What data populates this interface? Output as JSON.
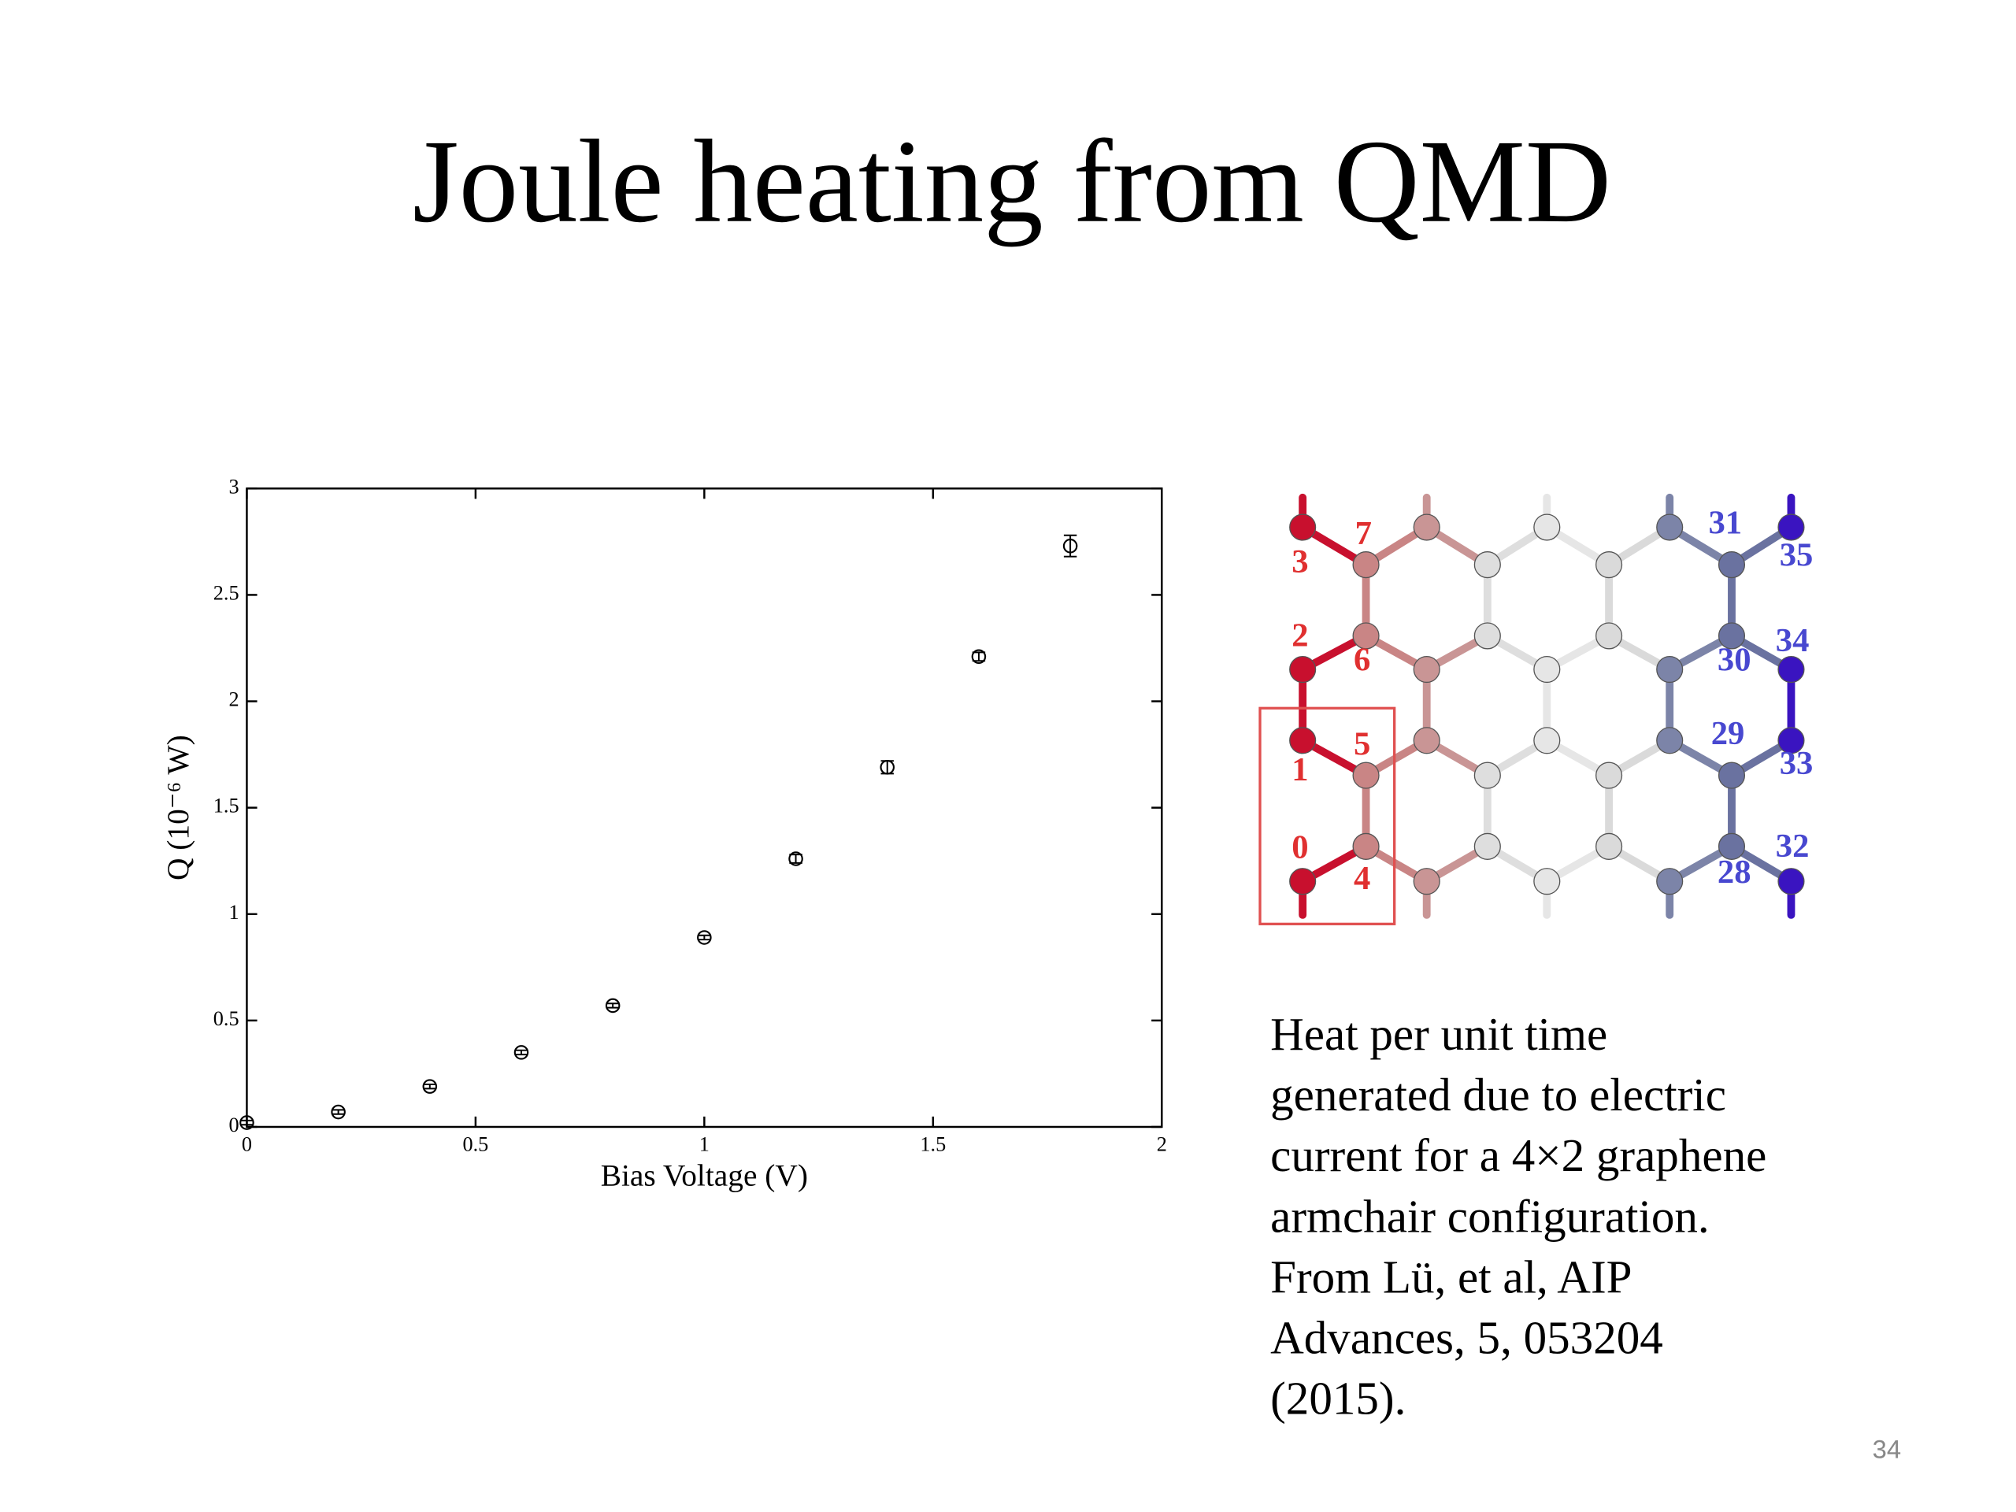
{
  "slide": {
    "title": "Joule heating from QMD",
    "caption": [
      "Heat per unit time",
      "generated due to electric",
      "current for a 4×2 graphene",
      "armchair configuration.",
      "From Lü, et al, AIP",
      "Advances, 5, 053204",
      "(2015)."
    ],
    "page_number": "34"
  },
  "lattice": {
    "labels": [
      "7",
      "3",
      "2",
      "6",
      "5",
      "1",
      "0",
      "4",
      "31",
      "35",
      "34",
      "30",
      "29",
      "33",
      "32",
      "28"
    ]
  },
  "chart_data": {
    "type": "scatter",
    "x": [
      0,
      0.2,
      0.4,
      0.6,
      0.8,
      1.0,
      1.2,
      1.4,
      1.6,
      1.8
    ],
    "values": [
      0.02,
      0.07,
      0.19,
      0.35,
      0.57,
      0.89,
      1.26,
      1.69,
      2.21,
      2.73
    ],
    "errors": [
      0.01,
      0.01,
      0.01,
      0.01,
      0.01,
      0.01,
      0.02,
      0.03,
      0.02,
      0.05
    ],
    "color": "#000000",
    "xlabel": "Bias Voltage (V)",
    "ylabel": "Q (10⁻⁶ W)",
    "xlim": [
      0,
      2
    ],
    "ylim": [
      0,
      3
    ],
    "xticks": [
      0,
      0.5,
      1,
      1.5,
      2
    ],
    "yticks": [
      0,
      0.5,
      1,
      1.5,
      2,
      2.5,
      3
    ]
  }
}
